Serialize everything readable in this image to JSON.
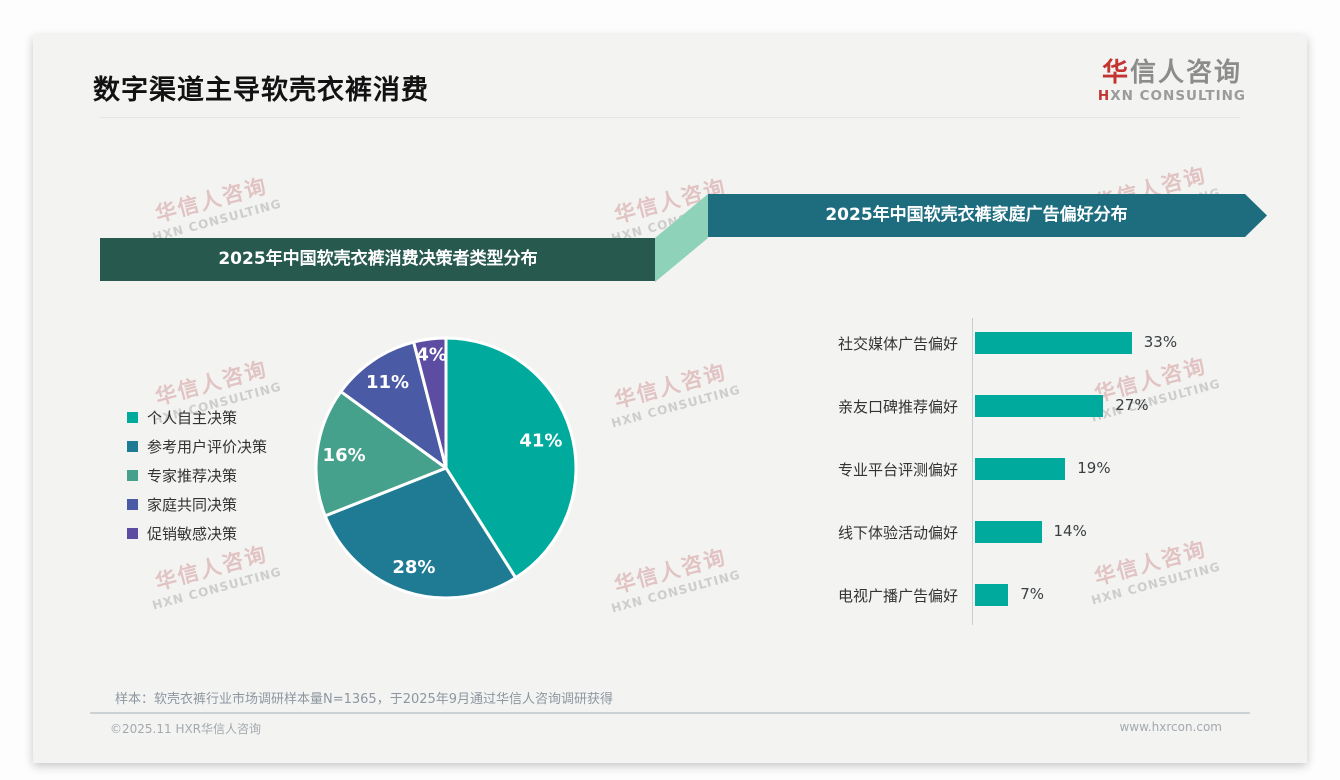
{
  "header": {
    "title": "数字渠道主导软壳衣裤消费",
    "logo": {
      "cn_accent": "华",
      "cn_rest": "信人咨询",
      "en_accent": "H",
      "en_rest": "XN CONSULTING"
    }
  },
  "watermark": {
    "cn": "华信人咨询",
    "en": "HXN CONSULTING"
  },
  "chart_data": [
    {
      "type": "pie",
      "title": "2025年中国软壳衣裤消费决策者类型分布",
      "labels": [
        "个人自主决策",
        "参考用户评价决策",
        "专家推荐决策",
        "家庭共同决策",
        "促销敏感决策"
      ],
      "values": [
        41,
        28,
        16,
        11,
        4
      ],
      "unit": "%",
      "data_labels": [
        "41%",
        "28%",
        "16%",
        "11%",
        "4%"
      ],
      "colors": [
        "#00ab9e",
        "#1f7b93",
        "#46a18c",
        "#4a5aa5",
        "#5c4da3"
      ],
      "start_angle": "12-oclock",
      "direction": "clockwise",
      "legend_position": "left"
    },
    {
      "type": "bar",
      "title": "2025年中国软壳衣裤家庭广告偏好分布",
      "orientation": "horizontal",
      "categories": [
        "社交媒体广告偏好",
        "亲友口碑推荐偏好",
        "专业平台评测偏好",
        "线下体验活动偏好",
        "电视广播广告偏好"
      ],
      "values": [
        33,
        27,
        19,
        14,
        7
      ],
      "unit": "%",
      "data_labels": [
        "33%",
        "27%",
        "19%",
        "14%",
        "7%"
      ],
      "bar_color": "#00ab9e",
      "xlim": [
        0,
        35
      ],
      "grid": false
    }
  ],
  "footer": {
    "sample_note": "样本：软壳衣裤行业市场调研样本量N=1365，于2025年9月通过华信人咨询调研获得",
    "copyright": "©2025.11 HXR华信人咨询",
    "website": "www.hxrcon.com"
  },
  "colors": {
    "banner_left": "#28594e",
    "banner_right": "#1d6d7f",
    "fold": "#8fd2ba",
    "logo_accent": "#c23531",
    "bar": "#00ab9e"
  }
}
